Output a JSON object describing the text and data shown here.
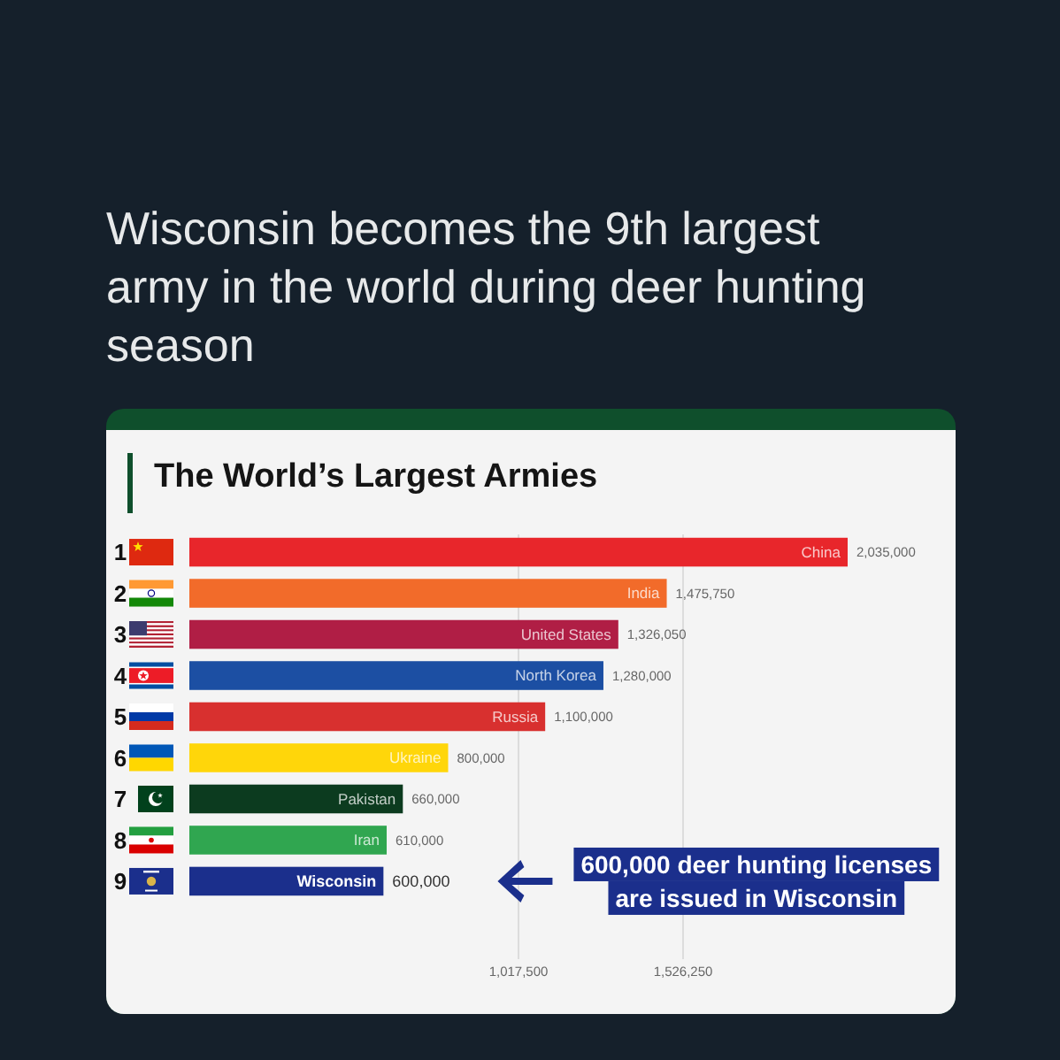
{
  "chart_data": {
    "type": "bar",
    "orientation": "horizontal",
    "title": "Wisconsin becomes the 9th largest army in the world during deer hunting season",
    "subtitle": "The World’s Largest Armies",
    "categories": [
      "China",
      "India",
      "United States",
      "North Korea",
      "Russia",
      "Ukraine",
      "Pakistan",
      "Iran",
      "Wisconsin"
    ],
    "values": [
      2035000,
      1475750,
      1326050,
      1280000,
      1100000,
      800000,
      660000,
      610000,
      600000
    ],
    "value_labels": [
      "2,035,000",
      "1,475,750",
      "1,326,050",
      "1,280,000",
      "1,100,000",
      "800,000",
      "660,000",
      "610,000",
      "600,000"
    ],
    "colors": [
      "#e8262b",
      "#f26b2a",
      "#b01e45",
      "#1c4fa3",
      "#d8302f",
      "#ffd60a",
      "#0c3b1f",
      "#30a650",
      "#1b2f8c"
    ],
    "xlim": [
      0,
      2035000
    ],
    "xticks": [
      {
        "value": 1017500,
        "label": "1,017,500"
      },
      {
        "value": 1526250,
        "label": "1,526,250"
      }
    ],
    "grid": "x",
    "annotations": [
      "1",
      "2",
      "3",
      "4",
      "5",
      "6",
      "7",
      "8",
      "9",
      "600,000 deer hunting licenses are issued in Wisconsin"
    ]
  }
}
